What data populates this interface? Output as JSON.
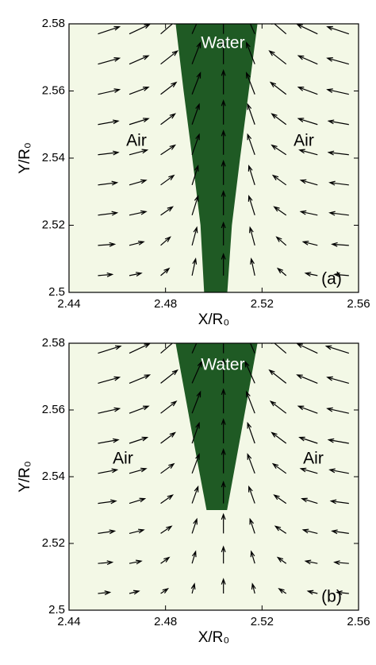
{
  "chart_data": [
    {
      "type": "quiver",
      "xlabel": "X/R₀",
      "ylabel": "Y/R₀",
      "xlim": [
        2.44,
        2.56
      ],
      "ylim": [
        2.5,
        2.58
      ],
      "xticks": [
        2.44,
        2.48,
        2.52,
        2.56
      ],
      "yticks": [
        2.5,
        2.52,
        2.54,
        2.56,
        2.58
      ],
      "background": "#f3f8e6",
      "water_color": "#1f5a24",
      "arrow_color": "#000000",
      "annotations": [
        "Water",
        "Air",
        "Air",
        "(a)"
      ],
      "water": {
        "x": [
          2.4842,
          2.4875,
          2.4911,
          2.4945,
          2.496,
          2.5056,
          2.5075,
          2.5109,
          2.5145,
          2.5181
        ],
        "y": [
          2.58,
          2.56,
          2.54,
          2.52,
          2.5,
          2.5,
          2.52,
          2.54,
          2.56,
          2.58
        ]
      },
      "x": [
        2.452,
        2.465,
        2.478,
        2.491,
        2.504,
        2.517,
        2.53,
        2.543,
        2.556
      ],
      "y": [
        2.505,
        2.514,
        2.523,
        2.532,
        2.541,
        2.55,
        2.559,
        2.568,
        2.577
      ],
      "u": [
        [
          0.6,
          0.5,
          0.35,
          0.15,
          0,
          -0.15,
          -0.35,
          -0.5,
          -0.6
        ],
        [
          0.7,
          0.6,
          0.4,
          0.2,
          0,
          -0.2,
          -0.4,
          -0.6,
          -0.7
        ],
        [
          0.8,
          0.7,
          0.5,
          0.25,
          0,
          -0.25,
          -0.5,
          -0.7,
          -0.8
        ],
        [
          0.8,
          0.7,
          0.55,
          0.25,
          0,
          -0.25,
          -0.55,
          -0.7,
          -0.8
        ],
        [
          0.85,
          0.75,
          0.6,
          0.3,
          0,
          -0.3,
          -0.6,
          -0.75,
          -0.85
        ],
        [
          0.85,
          0.8,
          0.6,
          0.3,
          0,
          -0.3,
          -0.6,
          -0.8,
          -0.85
        ],
        [
          0.9,
          0.8,
          0.65,
          0.35,
          0,
          -0.35,
          -0.65,
          -0.8,
          -0.9
        ],
        [
          0.9,
          0.8,
          0.7,
          0.35,
          0,
          -0.35,
          -0.7,
          -0.8,
          -0.9
        ],
        [
          0.9,
          0.85,
          0.7,
          0.4,
          0,
          -0.4,
          -0.7,
          -0.85,
          -0.9
        ]
      ],
      "v": [
        [
          0.05,
          0.1,
          0.3,
          0.7,
          0.9,
          0.7,
          0.3,
          0.1,
          0.05
        ],
        [
          0.05,
          0.15,
          0.35,
          0.75,
          0.95,
          0.75,
          0.35,
          0.15,
          0.05
        ],
        [
          0.1,
          0.15,
          0.35,
          0.8,
          1,
          0.8,
          0.35,
          0.15,
          0.1
        ],
        [
          0.1,
          0.2,
          0.4,
          0.8,
          1,
          0.8,
          0.4,
          0.2,
          0.1
        ],
        [
          0.1,
          0.2,
          0.4,
          0.85,
          1,
          0.85,
          0.4,
          0.2,
          0.1
        ],
        [
          0.15,
          0.25,
          0.45,
          0.85,
          1,
          0.85,
          0.45,
          0.25,
          0.15
        ],
        [
          0.2,
          0.3,
          0.5,
          0.9,
          1,
          0.9,
          0.5,
          0.3,
          0.2
        ],
        [
          0.25,
          0.35,
          0.55,
          0.9,
          1,
          0.9,
          0.55,
          0.35,
          0.25
        ],
        [
          0.3,
          0.4,
          0.6,
          0.9,
          1,
          0.9,
          0.6,
          0.4,
          0.3
        ]
      ]
    },
    {
      "type": "quiver",
      "xlabel": "X/R₀",
      "ylabel": "Y/R₀",
      "xlim": [
        2.44,
        2.56
      ],
      "ylim": [
        2.5,
        2.58
      ],
      "xticks": [
        2.44,
        2.48,
        2.52,
        2.56
      ],
      "yticks": [
        2.5,
        2.52,
        2.54,
        2.56,
        2.58
      ],
      "background": "#f3f8e6",
      "water_color": "#1f5a24",
      "arrow_color": "#000000",
      "annotations": [
        "Water",
        "Air",
        "Air",
        "(b)"
      ],
      "water": {
        "x": [
          2.4842,
          2.4905,
          2.497,
          2.5055,
          2.5118,
          2.5181
        ],
        "y": [
          2.58,
          2.555,
          2.53,
          2.53,
          2.555,
          2.58
        ]
      },
      "x": [
        2.452,
        2.465,
        2.478,
        2.491,
        2.504,
        2.517,
        2.53,
        2.543,
        2.556
      ],
      "y": [
        2.505,
        2.514,
        2.523,
        2.532,
        2.541,
        2.55,
        2.559,
        2.568,
        2.577
      ],
      "u": [
        [
          0.5,
          0.4,
          0.3,
          0.1,
          0,
          -0.1,
          -0.3,
          -0.4,
          -0.5
        ],
        [
          0.6,
          0.5,
          0.35,
          0.15,
          0,
          -0.15,
          -0.35,
          -0.5,
          -0.6
        ],
        [
          0.7,
          0.6,
          0.45,
          0.2,
          0,
          -0.2,
          -0.45,
          -0.6,
          -0.7
        ],
        [
          0.75,
          0.65,
          0.5,
          0.25,
          0,
          -0.25,
          -0.5,
          -0.65,
          -0.75
        ],
        [
          0.8,
          0.7,
          0.55,
          0.3,
          0,
          -0.3,
          -0.55,
          -0.7,
          -0.8
        ],
        [
          0.85,
          0.75,
          0.6,
          0.3,
          0,
          -0.3,
          -0.6,
          -0.75,
          -0.85
        ],
        [
          0.9,
          0.8,
          0.65,
          0.35,
          0,
          -0.35,
          -0.65,
          -0.8,
          -0.9
        ],
        [
          0.9,
          0.85,
          0.7,
          0.4,
          0,
          -0.4,
          -0.7,
          -0.85,
          -0.9
        ],
        [
          0.95,
          0.85,
          0.7,
          0.4,
          0,
          -0.4,
          -0.7,
          -0.85,
          -0.95
        ]
      ],
      "v": [
        [
          0.05,
          0.1,
          0.2,
          0.4,
          0.6,
          0.4,
          0.2,
          0.1,
          0.05
        ],
        [
          0.05,
          0.1,
          0.25,
          0.5,
          0.7,
          0.5,
          0.25,
          0.1,
          0.05
        ],
        [
          0.1,
          0.15,
          0.3,
          0.6,
          0.8,
          0.6,
          0.3,
          0.15,
          0.1
        ],
        [
          0.1,
          0.2,
          0.35,
          0.7,
          0.9,
          0.7,
          0.35,
          0.2,
          0.1
        ],
        [
          0.15,
          0.2,
          0.4,
          0.8,
          1,
          0.8,
          0.4,
          0.2,
          0.15
        ],
        [
          0.15,
          0.25,
          0.45,
          0.85,
          1,
          0.85,
          0.45,
          0.25,
          0.15
        ],
        [
          0.2,
          0.3,
          0.5,
          0.9,
          1,
          0.9,
          0.5,
          0.3,
          0.2
        ],
        [
          0.25,
          0.35,
          0.55,
          0.9,
          1,
          0.9,
          0.55,
          0.35,
          0.25
        ],
        [
          0.3,
          0.4,
          0.6,
          0.9,
          1,
          0.9,
          0.6,
          0.4,
          0.3
        ]
      ]
    }
  ]
}
